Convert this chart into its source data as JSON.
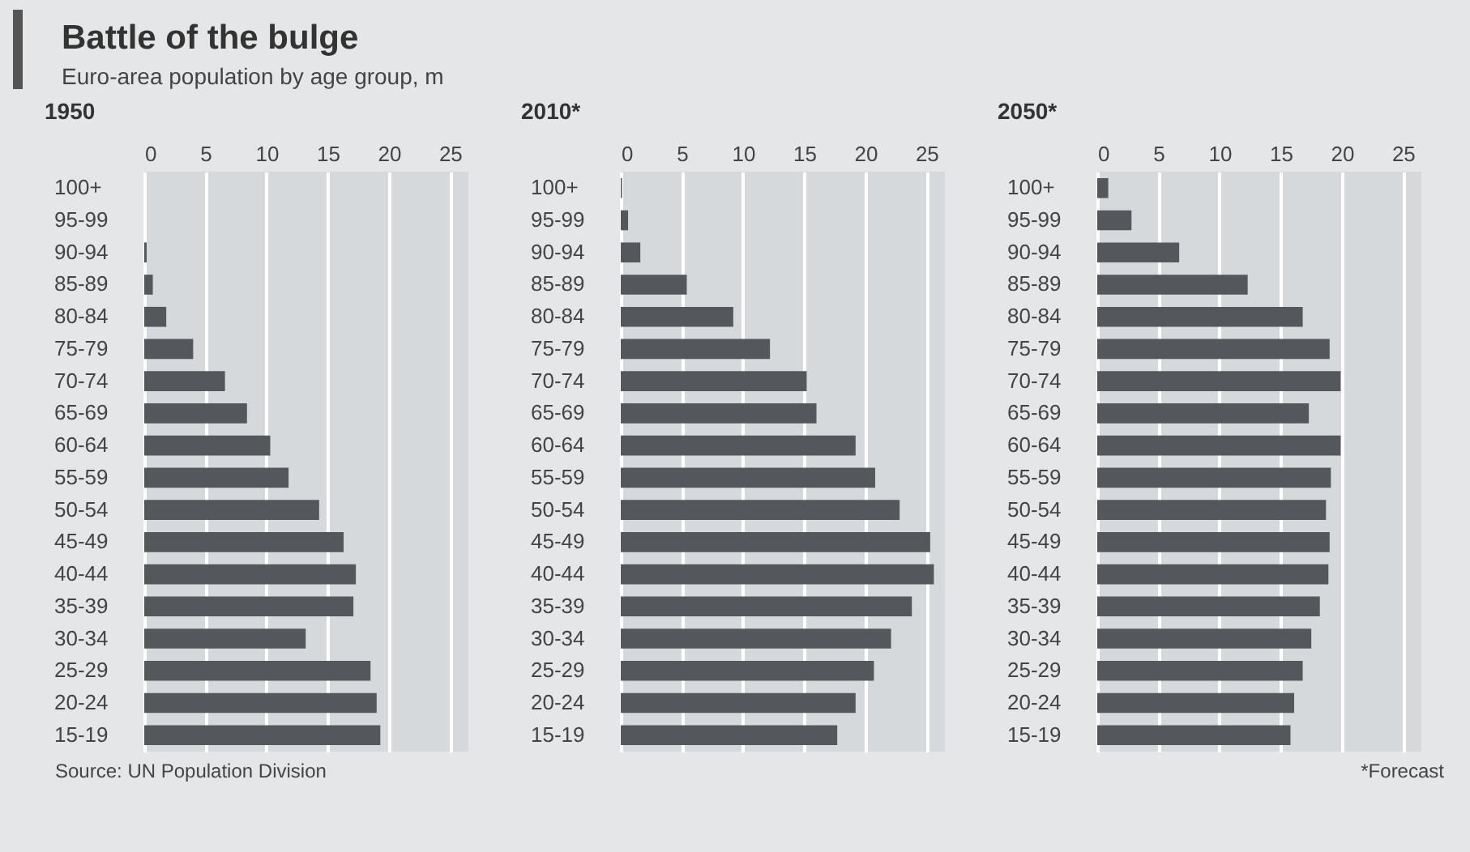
{
  "chart_data": [
    {
      "type": "bar",
      "orientation": "horizontal",
      "title": "Battle of the bulge",
      "subtitle": "Euro-area population by age group, m",
      "xlabel": "1950",
      "categories": [
        "100+",
        "95-99",
        "90-94",
        "85-89",
        "80-84",
        "75-79",
        "70-74",
        "65-69",
        "60-64",
        "55-59",
        "50-54",
        "45-49",
        "40-44",
        "35-39",
        "30-34",
        "25-29",
        "20-24",
        "15-19"
      ],
      "values": [
        0,
        null,
        0.2,
        0.7,
        1.8,
        4.0,
        6.6,
        8.4,
        10.3,
        11.8,
        14.3,
        16.3,
        17.3,
        17.1,
        13.2,
        18.5,
        19.0,
        19.3
      ],
      "color": "#54585c",
      "xlim": [
        0,
        26.5
      ],
      "xticks": [
        0,
        5,
        10,
        15,
        20,
        25
      ],
      "grid": "x",
      "annotations": [
        "Source: UN Population Division"
      ]
    },
    {
      "type": "bar",
      "orientation": "horizontal",
      "xlabel": "2010*",
      "categories": [
        "100+",
        "95-99",
        "90-94",
        "85-89",
        "80-84",
        "75-79",
        "70-74",
        "65-69",
        "60-64",
        "55-59",
        "50-54",
        "45-49",
        "40-44",
        "35-39",
        "30-34",
        "25-29",
        "20-24",
        "15-19"
      ],
      "values": [
        0.1,
        0.6,
        1.6,
        5.4,
        9.2,
        12.2,
        15.2,
        16.0,
        19.2,
        20.8,
        22.8,
        25.3,
        25.6,
        23.8,
        22.1,
        20.7,
        19.2,
        17.7
      ],
      "color": "#54585c",
      "xlim": [
        0,
        26.5
      ],
      "xticks": [
        0,
        5,
        10,
        15,
        20,
        25
      ],
      "grid": "x"
    },
    {
      "type": "bar",
      "orientation": "horizontal",
      "xlabel": "2050*",
      "categories": [
        "100+",
        "95-99",
        "90-94",
        "85-89",
        "80-84",
        "75-79",
        "70-74",
        "65-69",
        "60-64",
        "55-59",
        "50-54",
        "45-49",
        "40-44",
        "35-39",
        "30-34",
        "25-29",
        "20-24",
        "15-19"
      ],
      "values": [
        0.9,
        2.8,
        6.7,
        12.3,
        16.8,
        19.0,
        19.9,
        17.3,
        19.9,
        19.1,
        18.7,
        19.0,
        18.9,
        18.2,
        17.5,
        16.8,
        16.1,
        15.8
      ],
      "color": "#54585c",
      "xlim": [
        0,
        26.5
      ],
      "xticks": [
        0,
        5,
        10,
        15,
        20,
        25
      ],
      "grid": "x",
      "annotations": [
        "*Forecast"
      ]
    }
  ]
}
